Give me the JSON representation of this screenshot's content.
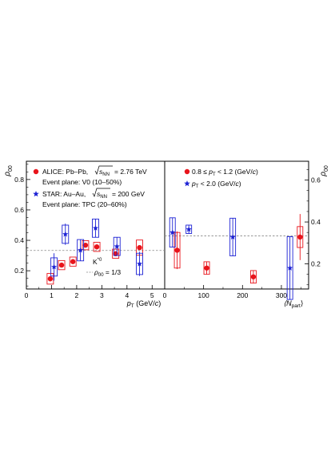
{
  "colors": {
    "alice": "#e8141b",
    "star": "#1d22d4",
    "refline": "#888888",
    "frame": "#000000"
  },
  "chart_data": [
    {
      "type": "scatter",
      "panel": "left",
      "xlabel_italic": "p",
      "xlabel_sub": "T",
      "xlabel_rest": " (GeV/",
      "xlabel_c": "c",
      "xlabel_close": ")",
      "ylabel_italic": "ρ",
      "ylabel_sub": "00",
      "xlim": [
        0,
        5.5
      ],
      "ylim": [
        0.08,
        0.92
      ],
      "xticks": [
        0,
        1,
        2,
        3,
        4,
        5
      ],
      "yticks": [
        0.2,
        0.4,
        0.6,
        0.8
      ],
      "legend": {
        "alice": "ALICE: Pb–Pb, ",
        "alice_energy": "= 2.76 TeV",
        "alice_ep": "Event plane: V0 (10–50%)",
        "star": "STAR: Au–Au, ",
        "star_energy": "= 200 GeV",
        "star_ep": "Event plane: TPC (20–60%)",
        "sqrt_s": "s",
        "sqrt_sub": "NN"
      },
      "particle_label": "K",
      "particle_sup": "*0",
      "refline_label": "ρ",
      "refline_sub": "00",
      "refline_value_text": " = 1/3",
      "refline_y": 0.3333,
      "series": [
        {
          "name": "ALICE",
          "marker": "circle",
          "points": [
            {
              "x": 0.95,
              "y": 0.147,
              "err": 0.0,
              "sys": 0.035
            },
            {
              "x": 1.4,
              "y": 0.237,
              "err": 0.0,
              "sys": 0.03
            },
            {
              "x": 1.85,
              "y": 0.26,
              "err": 0.0,
              "sys": 0.03
            },
            {
              "x": 2.35,
              "y": 0.368,
              "err": 0.0,
              "sys": 0.03
            },
            {
              "x": 2.8,
              "y": 0.357,
              "err": 0.0,
              "sys": 0.03
            },
            {
              "x": 3.55,
              "y": 0.312,
              "err": 0.0,
              "sys": 0.03
            },
            {
              "x": 4.5,
              "y": 0.352,
              "err": 0.0,
              "sys": 0.05
            }
          ]
        },
        {
          "name": "STAR",
          "marker": "star",
          "points": [
            {
              "x": 1.1,
              "y": 0.225,
              "err": 0.09,
              "sys": 0.06
            },
            {
              "x": 1.55,
              "y": 0.44,
              "err": 0.07,
              "sys": 0.06
            },
            {
              "x": 2.15,
              "y": 0.335,
              "err": 0.07,
              "sys": 0.07
            },
            {
              "x": 2.75,
              "y": 0.48,
              "err": 0.06,
              "sys": 0.06
            },
            {
              "x": 3.6,
              "y": 0.36,
              "err": 0.06,
              "sys": 0.06
            },
            {
              "x": 4.5,
              "y": 0.245,
              "err": 0.08,
              "sys": 0.07
            }
          ]
        }
      ]
    },
    {
      "type": "scatter",
      "panel": "right",
      "xlabel": "⟨N",
      "xlabel_sub": "part",
      "xlabel_close": "⟩",
      "ylabel_italic": "ρ",
      "ylabel_sub": "00",
      "xlim": [
        0,
        370
      ],
      "ylim": [
        0.08,
        0.69
      ],
      "xticks": [
        0,
        100,
        200,
        300
      ],
      "yticks": [
        0.2,
        0.4,
        0.6
      ],
      "legend": {
        "alice_a": "0.8 ≤ ",
        "alice_b": " < 1.2 (GeV/",
        "alice_c": ")",
        "star_b": " < 2.0 (GeV/",
        "star_c": ")",
        "pt_italic": "p",
        "pt_sub": "T",
        "c": "c"
      },
      "refline_y": 0.3333,
      "series": [
        {
          "name": "ALICE",
          "marker": "circle",
          "points": [
            {
              "x": 32,
              "y": 0.265,
              "err": 0.09,
              "sys": 0.085
            },
            {
              "x": 108,
              "y": 0.18,
              "err": 0.03,
              "sys": 0.03
            },
            {
              "x": 228,
              "y": 0.138,
              "err": 0.03,
              "sys": 0.03
            },
            {
              "x": 348,
              "y": 0.328,
              "err": 0.11,
              "sys": 0.05
            }
          ]
        },
        {
          "name": "STAR",
          "marker": "star",
          "points": [
            {
              "x": 20,
              "y": 0.35,
              "err": 0.07,
              "sys": 0.07
            },
            {
              "x": 62,
              "y": 0.365,
              "err": 0.02,
              "sys": 0.02
            },
            {
              "x": 175,
              "y": 0.328,
              "err": 0.09,
              "sys": 0.09
            },
            {
              "x": 322,
              "y": 0.18,
              "err": 0.15,
              "sys": 0.15
            }
          ]
        }
      ]
    }
  ]
}
